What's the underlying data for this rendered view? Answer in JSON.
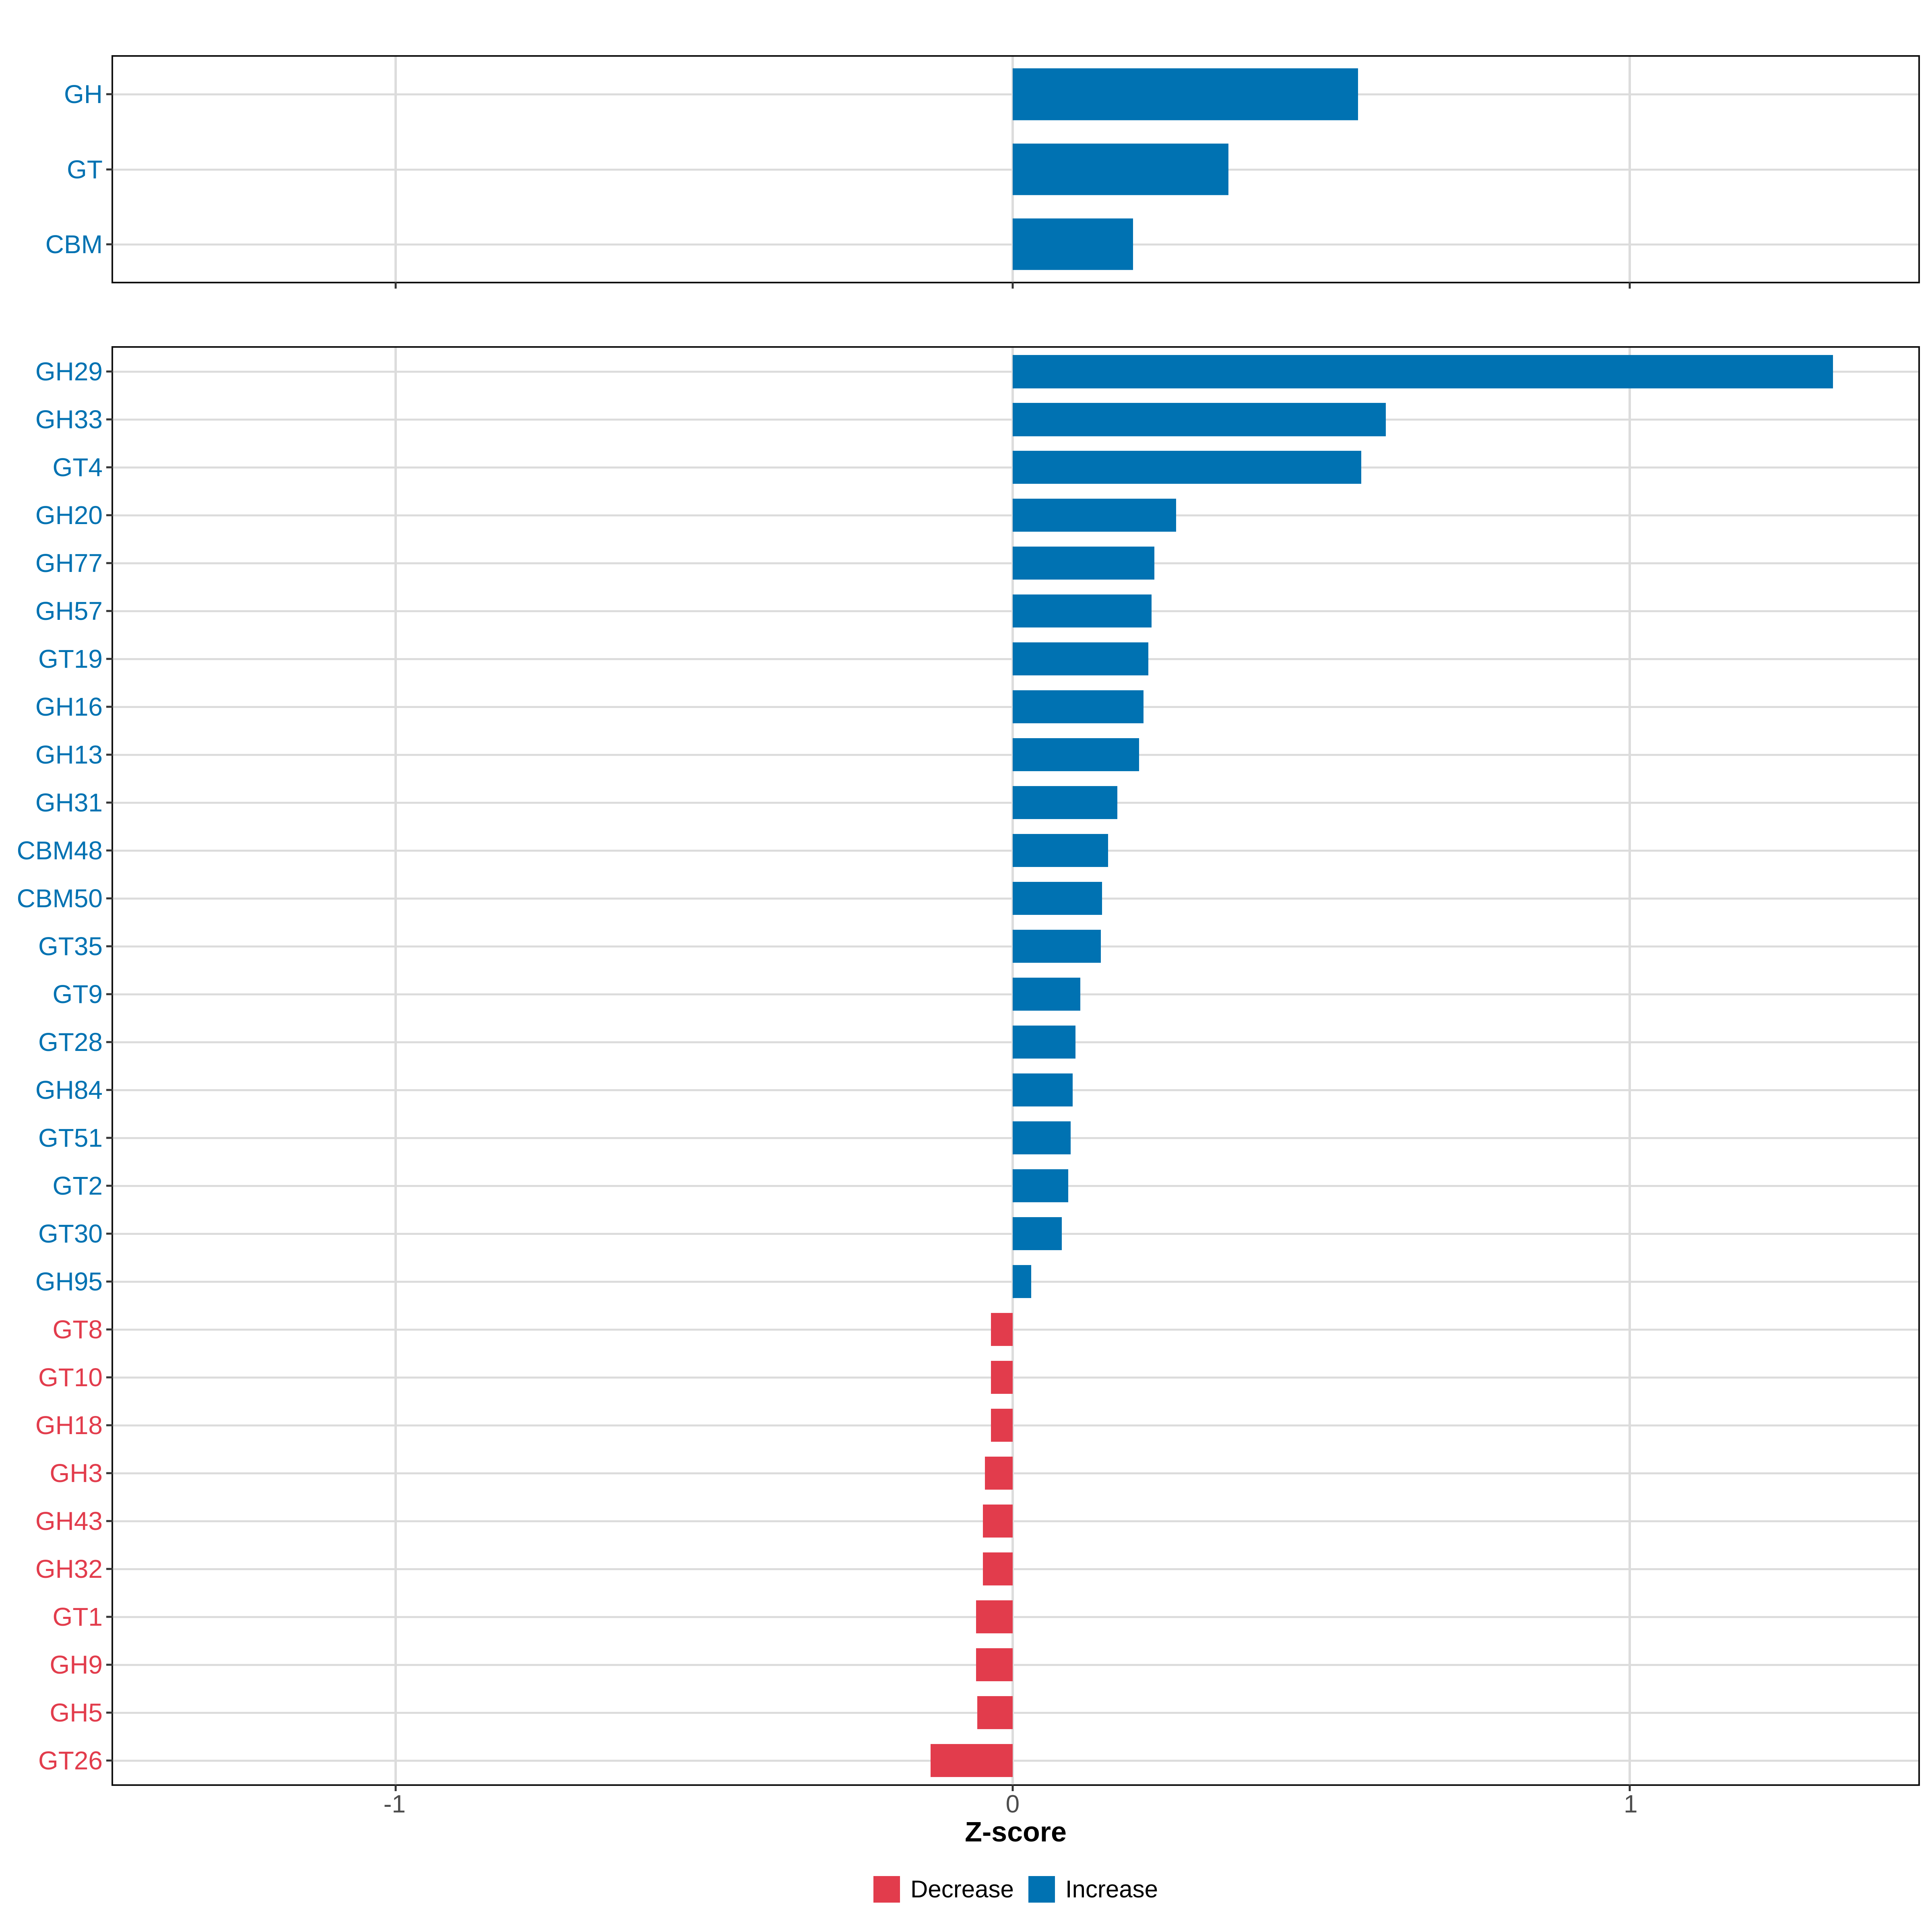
{
  "figure": {
    "axis": {
      "xlabel": "Z-score",
      "ticks": [
        -1,
        0,
        1
      ],
      "tick_labels": [
        "-1",
        "0",
        "1"
      ]
    },
    "legend": {
      "items": [
        {
          "label": "Decrease",
          "key": "decrease"
        },
        {
          "label": "Increase",
          "key": "increase"
        }
      ]
    },
    "colors": {
      "increase": "#0072B2",
      "decrease": "#E23C4C",
      "gridline": "#DCDCDC",
      "axis_text": "#4D4D4D",
      "tick_mark": "#333333",
      "panel_border": "#101010",
      "background": "#FFFFFF"
    }
  },
  "chart_data": [
    {
      "id": "overview",
      "type": "bar",
      "orientation": "horizontal",
      "title": "",
      "xlabel": "Z-score",
      "ylabel": "",
      "xlim": [
        -1.458,
        1.468
      ],
      "grid": true,
      "legend_position": "bottom",
      "categories": [
        "GH",
        "GT",
        "CBM"
      ],
      "values": [
        0.56,
        0.35,
        0.195
      ],
      "directions": [
        "Increase",
        "Increase",
        "Increase"
      ]
    },
    {
      "id": "families",
      "type": "bar",
      "orientation": "horizontal",
      "title": "",
      "xlabel": "Z-score",
      "ylabel": "",
      "xlim": [
        -1.458,
        1.468
      ],
      "grid": true,
      "legend_position": "bottom",
      "categories": [
        "GH29",
        "GH33",
        "GT4",
        "GH20",
        "GH77",
        "GH57",
        "GT19",
        "GH16",
        "GH13",
        "GH31",
        "CBM48",
        "CBM50",
        "GT35",
        "GT9",
        "GT28",
        "GH84",
        "GT51",
        "GT2",
        "GT30",
        "GH95",
        "GT8",
        "GT10",
        "GH18",
        "GH3",
        "GH43",
        "GH32",
        "GT1",
        "GH9",
        "GH5",
        "GT26"
      ],
      "values": [
        1.33,
        0.605,
        0.565,
        0.265,
        0.23,
        0.225,
        0.22,
        0.212,
        0.205,
        0.17,
        0.155,
        0.145,
        0.143,
        0.11,
        0.102,
        0.097,
        0.094,
        0.09,
        0.08,
        0.03,
        -0.035,
        -0.035,
        -0.035,
        -0.045,
        -0.048,
        -0.048,
        -0.059,
        -0.059,
        -0.057,
        -0.133
      ],
      "directions": [
        "Increase",
        "Increase",
        "Increase",
        "Increase",
        "Increase",
        "Increase",
        "Increase",
        "Increase",
        "Increase",
        "Increase",
        "Increase",
        "Increase",
        "Increase",
        "Increase",
        "Increase",
        "Increase",
        "Increase",
        "Increase",
        "Increase",
        "Increase",
        "Decrease",
        "Decrease",
        "Decrease",
        "Decrease",
        "Decrease",
        "Decrease",
        "Decrease",
        "Decrease",
        "Decrease",
        "Decrease"
      ]
    }
  ]
}
